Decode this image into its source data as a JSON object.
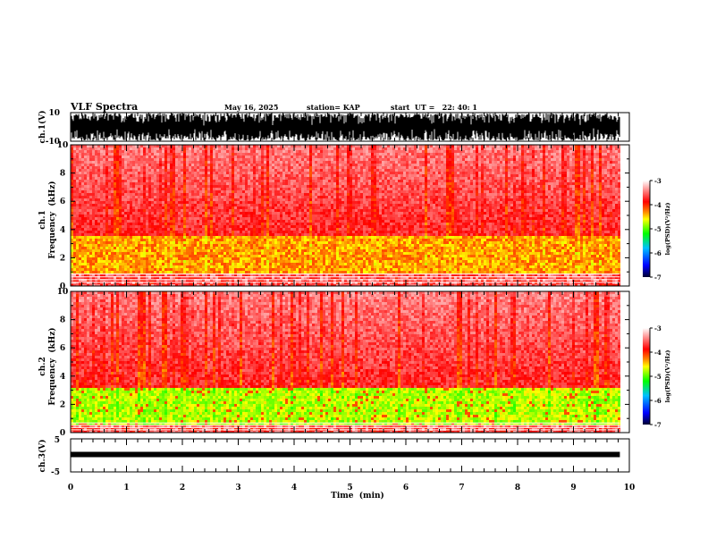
{
  "header": {
    "title": "VLF Spectra",
    "date": "May 16, 2025",
    "station": "station= KAP",
    "start": "start  UT =   22: 40: 1"
  },
  "chart_data": [
    {
      "type": "line",
      "name": "ch1-waveform",
      "ylabel": "ch.1(V)",
      "ylim": [
        -10,
        10
      ],
      "yticks": [
        "10",
        "-10"
      ],
      "xlim": [
        0,
        10
      ]
    },
    {
      "type": "heatmap",
      "name": "ch1-spectrogram",
      "ylabel_line1": "ch.1",
      "ylabel_line2": "Frequency  (kHz)",
      "ylim": [
        0,
        10
      ],
      "yticks": [
        "0",
        "2",
        "4",
        "6",
        "8",
        "10"
      ],
      "xlim": [
        0,
        9.83
      ],
      "bands_khz": {
        "strong_low": 0.8,
        "strong_high": 3.6,
        "hum_lines_below": 1.0
      },
      "colorbar": {
        "label": "log(PSD)(V²/Hz)",
        "range": [
          -7,
          -3
        ],
        "ticks": [
          "-3",
          "-4",
          "-5",
          "-6",
          "-7"
        ]
      }
    },
    {
      "type": "heatmap",
      "name": "ch2-spectrogram",
      "ylabel_line1": "ch.2",
      "ylabel_line2": "Frequency  (kHz)",
      "ylim": [
        0,
        10
      ],
      "yticks": [
        "0",
        "2",
        "4",
        "6",
        "8",
        "10"
      ],
      "xlim": [
        0,
        9.83
      ],
      "bands_khz": {
        "strong_low": 0.6,
        "strong_high": 3.2,
        "hum_lines_below": 0.8
      },
      "colorbar": {
        "label": "log(PSD)(V²/Hz)",
        "range": [
          -7,
          -3
        ],
        "ticks": [
          "-3",
          "-4",
          "-5",
          "-6",
          "-7"
        ]
      }
    },
    {
      "type": "line",
      "name": "ch3-waveform",
      "ylabel": "ch.3(V)",
      "ylim": [
        -5,
        5
      ],
      "yticks": [
        "5",
        "-5"
      ],
      "level": 0,
      "xlim": [
        0,
        9.83
      ]
    }
  ],
  "xaxis": {
    "label": "Time  (min)",
    "range": [
      0,
      10
    ],
    "ticks": [
      "0",
      "1",
      "2",
      "3",
      "4",
      "5",
      "6",
      "7",
      "8",
      "9",
      "10"
    ]
  },
  "colors": {
    "colormap": [
      "#000030",
      "#0000ff",
      "#00c0ff",
      "#00ff00",
      "#ffff00",
      "#ff8000",
      "#ff0000",
      "#ffffff"
    ]
  }
}
